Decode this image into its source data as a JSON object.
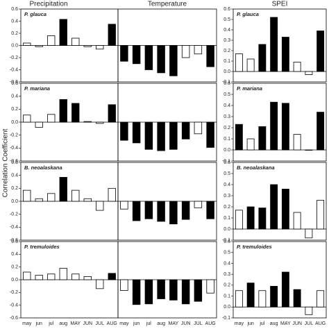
{
  "column_titles": [
    "Precipitation",
    "Temperature",
    "SPEI"
  ],
  "y_label": "Correlation Coefficient",
  "categories": [
    "may",
    "jun",
    "jul",
    "aug",
    "MAY",
    "JUN",
    "JUL",
    "AUG"
  ],
  "chart_data": [
    {
      "type": "bar",
      "title": "P. glauca",
      "values": [
        0.04,
        -0.02,
        0.16,
        0.43,
        0.12,
        -0.02,
        -0.06,
        0.35
      ],
      "colors": [
        "#fff",
        "#fff",
        "#fff",
        "#000",
        "#fff",
        "#fff",
        "#fff",
        "#000"
      ],
      "ylim": [
        -0.6,
        0.6
      ],
      "yticks": [
        -0.6,
        -0.4,
        -0.2,
        {
          "value": 0,
          "label": "0.0"
        },
        0.2,
        0.4,
        0.6
      ]
    },
    {
      "type": "bar",
      "values": [
        -0.26,
        -0.3,
        -0.4,
        -0.45,
        -0.5,
        -0.2,
        -0.14,
        -0.35
      ],
      "colors": [
        "#000",
        "#000",
        "#000",
        "#000",
        "#000",
        "#fff",
        "#fff",
        "#000"
      ],
      "ylim": [
        -0.6,
        0.6
      ]
    },
    {
      "type": "bar",
      "title": "P. glauca",
      "values": [
        0.17,
        0.12,
        0.26,
        0.52,
        0.33,
        0.09,
        -0.03,
        0.39
      ],
      "colors": [
        "#fff",
        "#fff",
        "#000",
        "#000",
        "#000",
        "#fff",
        "#fff",
        "#000"
      ],
      "ylim": [
        -0.1,
        0.6
      ],
      "yticks": [
        -0.1,
        {
          "value": 0,
          "label": "0.0"
        },
        0.1,
        0.2,
        0.3,
        0.4,
        0.5,
        0.6
      ]
    },
    {
      "type": "bar",
      "title": "P. mariana",
      "values": [
        0.11,
        -0.08,
        0.12,
        0.35,
        0.29,
        0.01,
        -0.02,
        0.27
      ],
      "colors": [
        "#fff",
        "#fff",
        "#fff",
        "#000",
        "#000",
        "#fff",
        "#fff",
        "#000"
      ],
      "ylim": [
        -0.6,
        0.6
      ],
      "yticks": [
        -0.6,
        -0.4,
        -0.2,
        {
          "value": 0,
          "label": "0.0"
        },
        0.2,
        0.4,
        0.6
      ]
    },
    {
      "type": "bar",
      "values": [
        -0.28,
        -0.32,
        -0.42,
        -0.44,
        -0.42,
        -0.26,
        -0.18,
        -0.39
      ],
      "colors": [
        "#000",
        "#000",
        "#000",
        "#000",
        "#000",
        "#000",
        "#fff",
        "#000"
      ],
      "ylim": [
        -0.6,
        0.6
      ]
    },
    {
      "type": "bar",
      "title": "P. mariana",
      "values": [
        0.23,
        0.1,
        0.21,
        0.43,
        0.42,
        0.14,
        0.0,
        0.34
      ],
      "colors": [
        "#000",
        "#fff",
        "#000",
        "#000",
        "#000",
        "#fff",
        "#fff",
        "#000"
      ],
      "ylim": [
        -0.1,
        0.6
      ],
      "yticks": [
        -0.1,
        {
          "value": 0,
          "label": "0.0"
        },
        0.1,
        0.2,
        0.3,
        0.4,
        0.5,
        0.6
      ]
    },
    {
      "type": "bar",
      "title": "B. neoalaskana",
      "values": [
        0.17,
        0.04,
        0.12,
        0.37,
        0.17,
        0.04,
        -0.14,
        0.2
      ],
      "colors": [
        "#fff",
        "#fff",
        "#fff",
        "#000",
        "#fff",
        "#fff",
        "#fff",
        "#fff"
      ],
      "ylim": [
        -0.6,
        0.6
      ],
      "yticks": [
        -0.6,
        -0.4,
        -0.2,
        {
          "value": 0,
          "label": "0.0"
        },
        0.2,
        0.4,
        0.6
      ]
    },
    {
      "type": "bar",
      "values": [
        -0.12,
        -0.3,
        -0.27,
        -0.31,
        -0.35,
        -0.28,
        -0.1,
        -0.27
      ],
      "colors": [
        "#fff",
        "#000",
        "#000",
        "#000",
        "#000",
        "#000",
        "#fff",
        "#000"
      ],
      "ylim": [
        -0.6,
        0.6
      ]
    },
    {
      "type": "bar",
      "title": "B. neoalaskana",
      "values": [
        0.17,
        0.2,
        0.19,
        0.4,
        0.36,
        0.15,
        -0.08,
        0.26
      ],
      "colors": [
        "#fff",
        "#000",
        "#000",
        "#000",
        "#000",
        "#fff",
        "#fff",
        "#fff"
      ],
      "ylim": [
        -0.1,
        0.6
      ],
      "yticks": [
        -0.1,
        {
          "value": 0,
          "label": "0.0"
        },
        0.1,
        0.2,
        0.3,
        0.4,
        0.5,
        0.6
      ]
    },
    {
      "type": "bar",
      "title": "P. tremuloides",
      "values": [
        0.12,
        0.07,
        0.09,
        0.18,
        0.09,
        0.05,
        -0.14,
        0.1
      ],
      "colors": [
        "#fff",
        "#fff",
        "#fff",
        "#fff",
        "#fff",
        "#fff",
        "#fff",
        "#000"
      ],
      "ylim": [
        -0.6,
        0.6
      ],
      "yticks": [
        -0.6,
        -0.4,
        -0.2,
        {
          "value": 0,
          "label": "0.0"
        },
        0.2,
        0.4,
        0.6
      ]
    },
    {
      "type": "bar",
      "values": [
        -0.17,
        -0.39,
        -0.38,
        -0.3,
        -0.32,
        -0.38,
        -0.34,
        -0.21
      ],
      "colors": [
        "#fff",
        "#000",
        "#000",
        "#000",
        "#000",
        "#000",
        "#000",
        "#fff"
      ],
      "ylim": [
        -0.6,
        0.6
      ]
    },
    {
      "type": "bar",
      "title": "P. tremuloides",
      "values": [
        0.15,
        0.22,
        0.15,
        0.19,
        0.32,
        0.16,
        -0.07,
        0.15
      ],
      "colors": [
        "#fff",
        "#000",
        "#fff",
        "#000",
        "#000",
        "#000",
        "#fff",
        "#fff"
      ],
      "ylim": [
        -0.1,
        0.6
      ],
      "yticks": [
        -0.1,
        {
          "value": 0,
          "label": "0.0"
        },
        0.1,
        0.2,
        0.3,
        0.4,
        0.5,
        0.6
      ]
    }
  ]
}
